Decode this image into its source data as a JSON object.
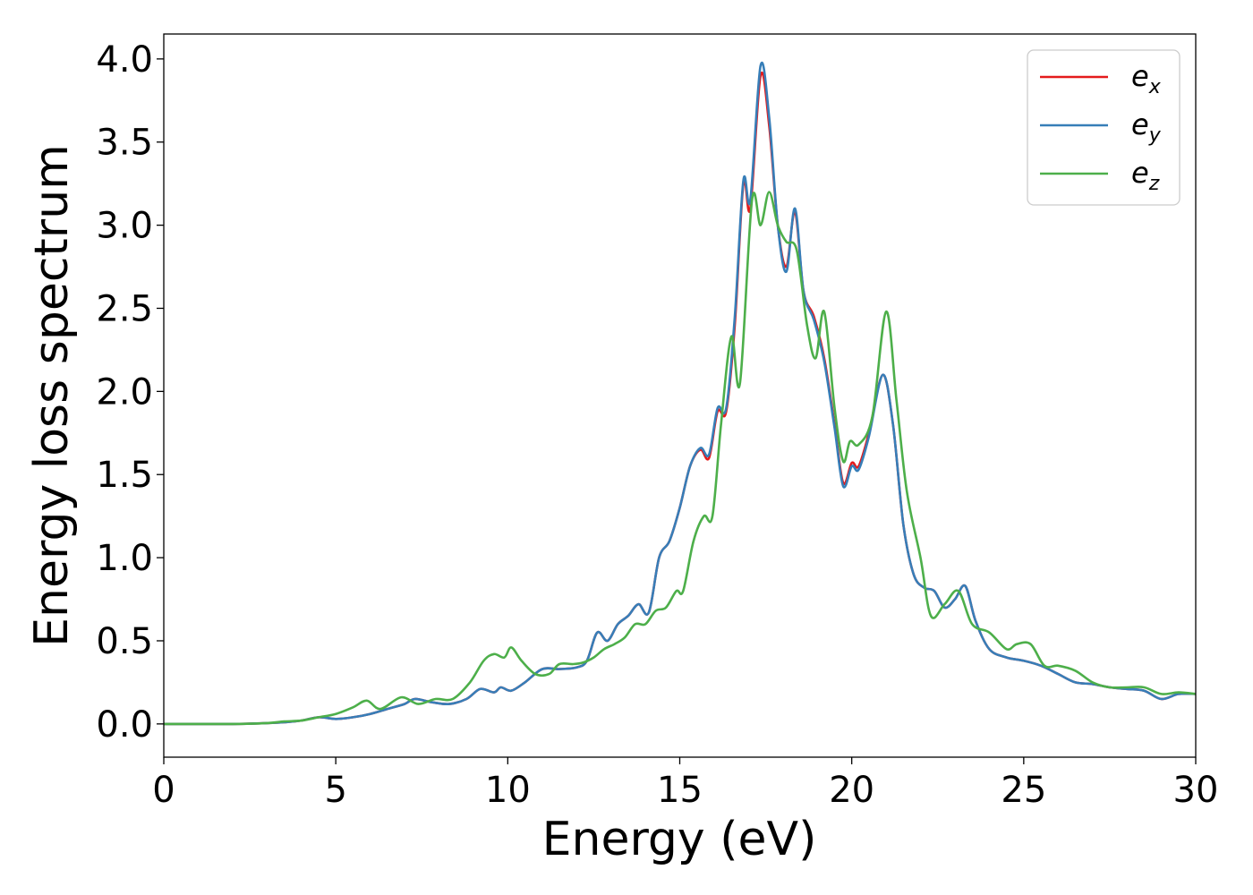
{
  "chart_data": {
    "type": "line",
    "xlabel": "Energy (eV)",
    "ylabel": "Energy loss spectrum",
    "xlim": [
      0,
      30
    ],
    "ylim": [
      -0.2,
      4.15
    ],
    "xticks": [
      0,
      5,
      10,
      15,
      20,
      25,
      30
    ],
    "xtick_labels": [
      "0",
      "5",
      "10",
      "15",
      "20",
      "25",
      "30"
    ],
    "yticks": [
      0.0,
      0.5,
      1.0,
      1.5,
      2.0,
      2.5,
      3.0,
      3.5,
      4.0
    ],
    "ytick_labels": [
      "0.0",
      "0.5",
      "1.0",
      "1.5",
      "2.0",
      "2.5",
      "3.0",
      "3.5",
      "4.0"
    ],
    "grid": false,
    "legend_position": "top-right",
    "series": [
      {
        "name": "e",
        "subscript": "x",
        "color": "#e41a1c",
        "points": [
          [
            0,
            0
          ],
          [
            2,
            0
          ],
          [
            3,
            0.005
          ],
          [
            3.5,
            0.01
          ],
          [
            4,
            0.02
          ],
          [
            4.5,
            0.04
          ],
          [
            5,
            0.03
          ],
          [
            5.5,
            0.04
          ],
          [
            6,
            0.06
          ],
          [
            6.5,
            0.09
          ],
          [
            7,
            0.12
          ],
          [
            7.3,
            0.15
          ],
          [
            7.8,
            0.13
          ],
          [
            8.3,
            0.12
          ],
          [
            8.8,
            0.15
          ],
          [
            9.2,
            0.21
          ],
          [
            9.6,
            0.19
          ],
          [
            9.8,
            0.22
          ],
          [
            10.1,
            0.2
          ],
          [
            10.5,
            0.25
          ],
          [
            11,
            0.33
          ],
          [
            11.5,
            0.33
          ],
          [
            12,
            0.34
          ],
          [
            12.3,
            0.38
          ],
          [
            12.6,
            0.55
          ],
          [
            12.9,
            0.5
          ],
          [
            13.2,
            0.6
          ],
          [
            13.5,
            0.65
          ],
          [
            13.8,
            0.72
          ],
          [
            14.1,
            0.67
          ],
          [
            14.4,
            1.0
          ],
          [
            14.7,
            1.1
          ],
          [
            15,
            1.3
          ],
          [
            15.3,
            1.55
          ],
          [
            15.6,
            1.65
          ],
          [
            15.85,
            1.6
          ],
          [
            16.1,
            1.88
          ],
          [
            16.35,
            1.88
          ],
          [
            16.6,
            2.4
          ],
          [
            16.85,
            3.25
          ],
          [
            17.05,
            3.1
          ],
          [
            17.35,
            3.9
          ],
          [
            17.6,
            3.6
          ],
          [
            17.85,
            3.0
          ],
          [
            18.1,
            2.75
          ],
          [
            18.35,
            3.08
          ],
          [
            18.6,
            2.6
          ],
          [
            18.9,
            2.45
          ],
          [
            19.2,
            2.2
          ],
          [
            19.5,
            1.8
          ],
          [
            19.75,
            1.45
          ],
          [
            20,
            1.57
          ],
          [
            20.2,
            1.55
          ],
          [
            20.5,
            1.75
          ],
          [
            20.9,
            2.1
          ],
          [
            21.2,
            1.8
          ],
          [
            21.5,
            1.2
          ],
          [
            21.8,
            0.9
          ],
          [
            22.1,
            0.82
          ],
          [
            22.4,
            0.8
          ],
          [
            22.7,
            0.7
          ],
          [
            23,
            0.75
          ],
          [
            23.3,
            0.83
          ],
          [
            23.6,
            0.62
          ],
          [
            24,
            0.45
          ],
          [
            24.5,
            0.4
          ],
          [
            25,
            0.38
          ],
          [
            25.5,
            0.35
          ],
          [
            26,
            0.3
          ],
          [
            26.5,
            0.25
          ],
          [
            27,
            0.24
          ],
          [
            27.5,
            0.22
          ],
          [
            28,
            0.21
          ],
          [
            28.5,
            0.2
          ],
          [
            29,
            0.15
          ],
          [
            29.5,
            0.18
          ],
          [
            30,
            0.18
          ]
        ]
      },
      {
        "name": "e",
        "subscript": "y",
        "color": "#377eb8",
        "points": [
          [
            0,
            0
          ],
          [
            2,
            0
          ],
          [
            3,
            0.005
          ],
          [
            3.5,
            0.01
          ],
          [
            4,
            0.02
          ],
          [
            4.5,
            0.04
          ],
          [
            5,
            0.03
          ],
          [
            5.5,
            0.04
          ],
          [
            6,
            0.06
          ],
          [
            6.5,
            0.09
          ],
          [
            7,
            0.12
          ],
          [
            7.3,
            0.15
          ],
          [
            7.8,
            0.13
          ],
          [
            8.3,
            0.12
          ],
          [
            8.8,
            0.15
          ],
          [
            9.2,
            0.21
          ],
          [
            9.6,
            0.19
          ],
          [
            9.8,
            0.22
          ],
          [
            10.1,
            0.2
          ],
          [
            10.5,
            0.25
          ],
          [
            11,
            0.33
          ],
          [
            11.5,
            0.33
          ],
          [
            12,
            0.34
          ],
          [
            12.3,
            0.38
          ],
          [
            12.6,
            0.55
          ],
          [
            12.9,
            0.5
          ],
          [
            13.2,
            0.6
          ],
          [
            13.5,
            0.65
          ],
          [
            13.8,
            0.72
          ],
          [
            14.1,
            0.67
          ],
          [
            14.4,
            1.0
          ],
          [
            14.7,
            1.1
          ],
          [
            15,
            1.3
          ],
          [
            15.3,
            1.55
          ],
          [
            15.6,
            1.66
          ],
          [
            15.85,
            1.62
          ],
          [
            16.1,
            1.9
          ],
          [
            16.35,
            1.9
          ],
          [
            16.6,
            2.45
          ],
          [
            16.85,
            3.27
          ],
          [
            17.05,
            3.15
          ],
          [
            17.35,
            3.96
          ],
          [
            17.6,
            3.65
          ],
          [
            17.85,
            3.0
          ],
          [
            18.1,
            2.72
          ],
          [
            18.35,
            3.1
          ],
          [
            18.6,
            2.6
          ],
          [
            18.9,
            2.43
          ],
          [
            19.2,
            2.18
          ],
          [
            19.5,
            1.78
          ],
          [
            19.75,
            1.43
          ],
          [
            20,
            1.55
          ],
          [
            20.2,
            1.53
          ],
          [
            20.5,
            1.73
          ],
          [
            20.9,
            2.1
          ],
          [
            21.2,
            1.8
          ],
          [
            21.5,
            1.2
          ],
          [
            21.8,
            0.9
          ],
          [
            22.1,
            0.82
          ],
          [
            22.4,
            0.8
          ],
          [
            22.7,
            0.7
          ],
          [
            23,
            0.75
          ],
          [
            23.3,
            0.83
          ],
          [
            23.6,
            0.62
          ],
          [
            24,
            0.45
          ],
          [
            24.5,
            0.4
          ],
          [
            25,
            0.38
          ],
          [
            25.5,
            0.35
          ],
          [
            26,
            0.3
          ],
          [
            26.5,
            0.25
          ],
          [
            27,
            0.24
          ],
          [
            27.5,
            0.22
          ],
          [
            28,
            0.21
          ],
          [
            28.5,
            0.2
          ],
          [
            29,
            0.15
          ],
          [
            29.5,
            0.18
          ],
          [
            30,
            0.18
          ]
        ]
      },
      {
        "name": "e",
        "subscript": "z",
        "color": "#4daf4a",
        "points": [
          [
            0,
            0
          ],
          [
            2,
            0
          ],
          [
            3,
            0.005
          ],
          [
            3.5,
            0.015
          ],
          [
            4,
            0.02
          ],
          [
            4.5,
            0.04
          ],
          [
            5,
            0.06
          ],
          [
            5.5,
            0.1
          ],
          [
            5.9,
            0.14
          ],
          [
            6.3,
            0.09
          ],
          [
            6.9,
            0.16
          ],
          [
            7.4,
            0.12
          ],
          [
            7.9,
            0.15
          ],
          [
            8.4,
            0.15
          ],
          [
            8.9,
            0.25
          ],
          [
            9.3,
            0.38
          ],
          [
            9.6,
            0.42
          ],
          [
            9.9,
            0.4
          ],
          [
            10.1,
            0.46
          ],
          [
            10.4,
            0.38
          ],
          [
            10.8,
            0.3
          ],
          [
            11.2,
            0.3
          ],
          [
            11.5,
            0.36
          ],
          [
            11.9,
            0.36
          ],
          [
            12.2,
            0.37
          ],
          [
            12.5,
            0.4
          ],
          [
            12.8,
            0.45
          ],
          [
            13.1,
            0.48
          ],
          [
            13.4,
            0.52
          ],
          [
            13.7,
            0.6
          ],
          [
            14,
            0.6
          ],
          [
            14.3,
            0.68
          ],
          [
            14.6,
            0.7
          ],
          [
            14.9,
            0.8
          ],
          [
            15.1,
            0.8
          ],
          [
            15.4,
            1.1
          ],
          [
            15.7,
            1.25
          ],
          [
            15.95,
            1.25
          ],
          [
            16.2,
            1.8
          ],
          [
            16.5,
            2.33
          ],
          [
            16.75,
            2.05
          ],
          [
            17.1,
            3.15
          ],
          [
            17.35,
            3.0
          ],
          [
            17.6,
            3.2
          ],
          [
            17.85,
            3.0
          ],
          [
            18.1,
            2.9
          ],
          [
            18.4,
            2.85
          ],
          [
            18.7,
            2.4
          ],
          [
            18.95,
            2.2
          ],
          [
            19.2,
            2.48
          ],
          [
            19.5,
            1.9
          ],
          [
            19.75,
            1.58
          ],
          [
            19.95,
            1.7
          ],
          [
            20.2,
            1.68
          ],
          [
            20.6,
            1.85
          ],
          [
            21,
            2.48
          ],
          [
            21.3,
            1.95
          ],
          [
            21.6,
            1.4
          ],
          [
            22,
            1.0
          ],
          [
            22.3,
            0.65
          ],
          [
            22.7,
            0.72
          ],
          [
            23.1,
            0.8
          ],
          [
            23.5,
            0.6
          ],
          [
            24,
            0.55
          ],
          [
            24.5,
            0.45
          ],
          [
            24.8,
            0.48
          ],
          [
            25.2,
            0.48
          ],
          [
            25.6,
            0.35
          ],
          [
            26,
            0.35
          ],
          [
            26.5,
            0.32
          ],
          [
            27,
            0.25
          ],
          [
            27.5,
            0.22
          ],
          [
            28,
            0.22
          ],
          [
            28.5,
            0.22
          ],
          [
            29,
            0.18
          ],
          [
            29.5,
            0.19
          ],
          [
            30,
            0.18
          ]
        ]
      }
    ]
  }
}
